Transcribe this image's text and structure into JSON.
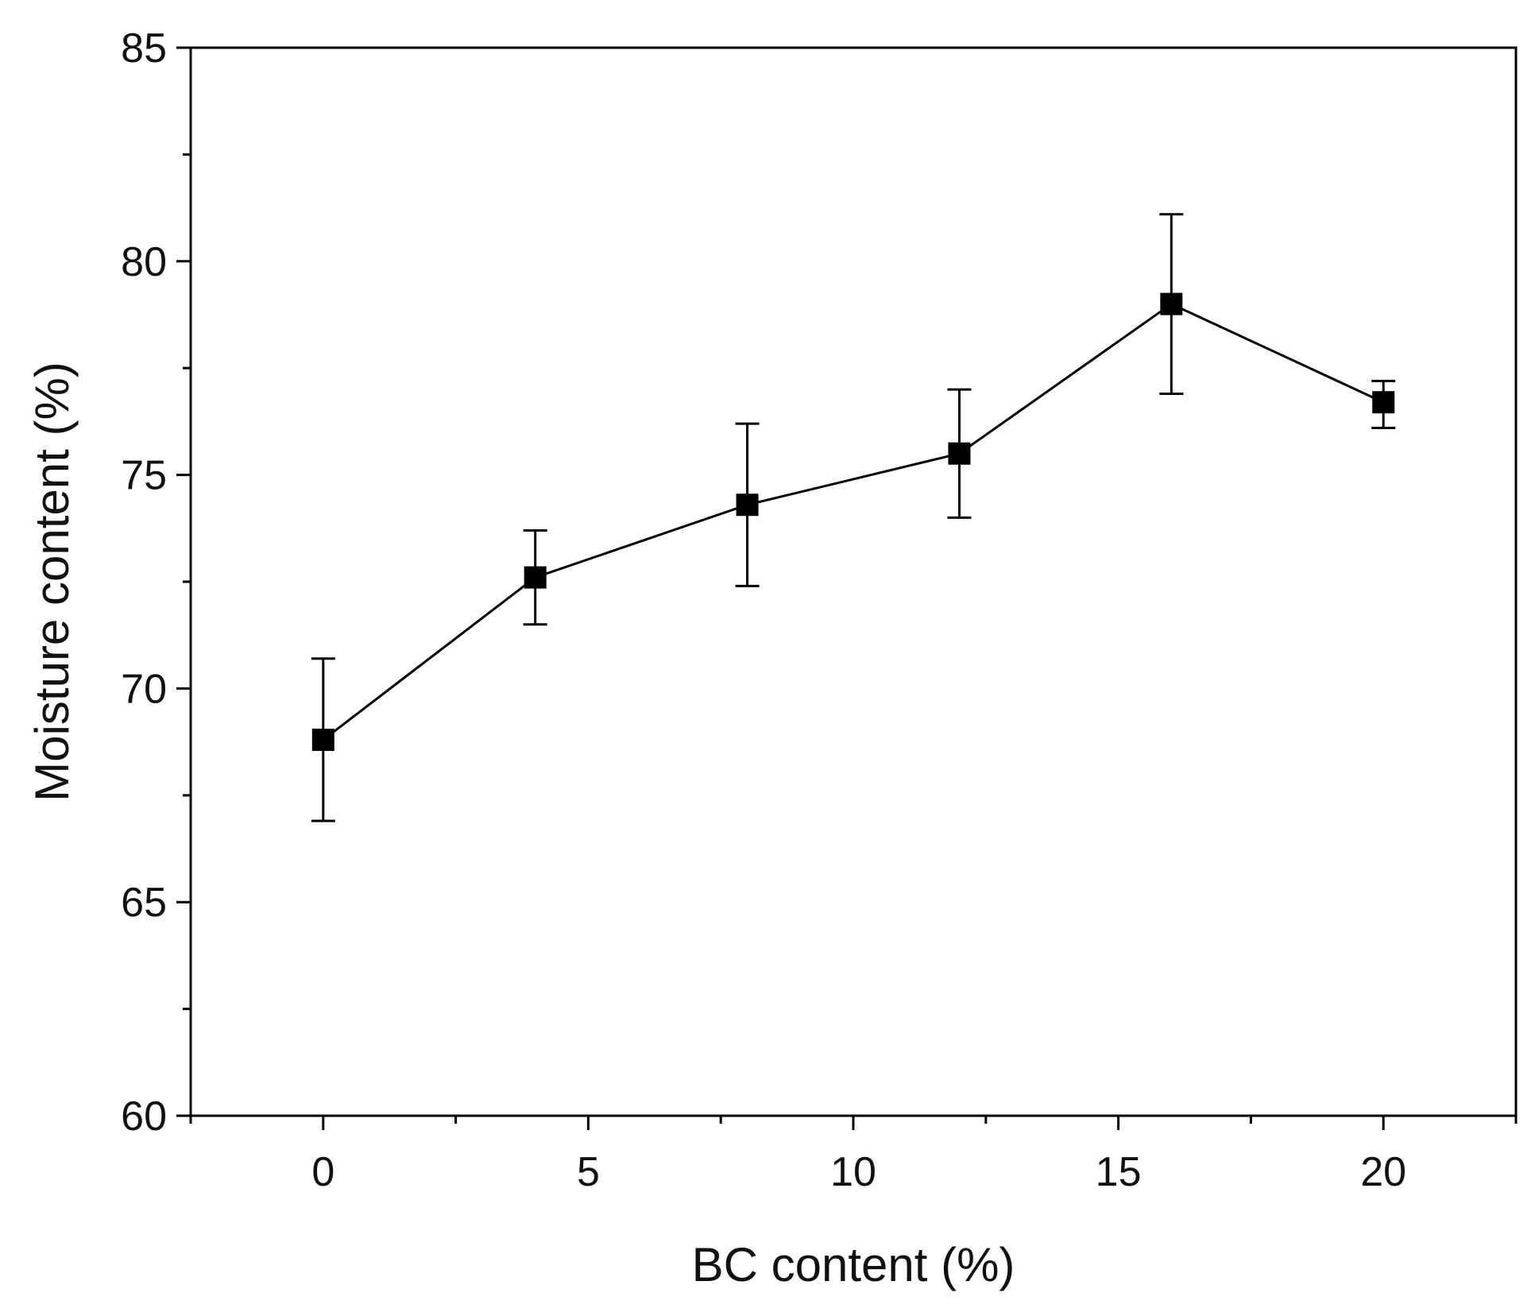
{
  "chart_data": {
    "type": "line",
    "title": "",
    "xlabel": "BC content (%)",
    "ylabel": "Moisture content (%)",
    "xlim": [
      -2.5,
      22.5
    ],
    "ylim": [
      60,
      85
    ],
    "x_ticks": [
      0,
      5,
      10,
      15,
      20
    ],
    "x_tick_labels": [
      "0",
      "5",
      "10",
      "15",
      "20"
    ],
    "y_ticks": [
      60,
      65,
      70,
      75,
      80,
      85
    ],
    "y_tick_labels": [
      "60",
      "65",
      "70",
      "75",
      "80",
      "85"
    ],
    "grid": false,
    "legend": "none",
    "marker": "square",
    "color": "#000000",
    "series": [
      {
        "x": [
          0,
          4,
          8,
          12,
          16,
          20
        ],
        "values": [
          68.8,
          72.6,
          74.3,
          75.5,
          79.0,
          76.7
        ],
        "error_upper": [
          70.7,
          73.7,
          76.2,
          77.0,
          81.1,
          77.2
        ],
        "error_lower": [
          66.9,
          71.5,
          72.4,
          74.0,
          76.9,
          76.1
        ]
      }
    ]
  }
}
